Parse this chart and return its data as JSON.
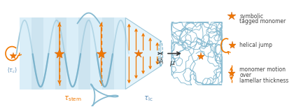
{
  "bg_color": "#ffffff",
  "blue_helix": "#7ab3cc",
  "blue_light": "#cde4f0",
  "blue_stripe": "#daeef8",
  "blue_mid": "#a8cfe0",
  "orange_color": "#f07800",
  "text_color": "#444444",
  "blue_text": "#5b8db8",
  "orange_text": "#f07800",
  "label_tau_c": "(τₑ)",
  "label_tau_stem": "τstem",
  "label_tau_lc": "τlc",
  "label_5A": "5Å",
  "label_mu": "μ",
  "legend_symbolic": "symbolic\ntagged monomer",
  "legend_helical": "helical jump",
  "legend_monomer": "monomer motion\nover\nlamellar thickness"
}
